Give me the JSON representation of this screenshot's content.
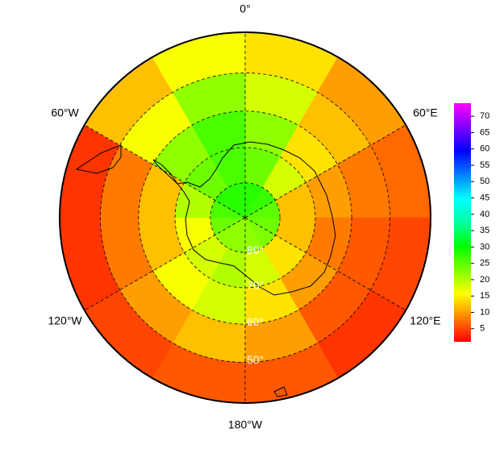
{
  "chart_data": {
    "type": "polar-heatmap",
    "lat_edges": [
      -90,
      -80,
      -70,
      -60,
      -50,
      -40
    ],
    "lon_edges": [
      0,
      30,
      60,
      90,
      120,
      150,
      180,
      210,
      240,
      270,
      300,
      330,
      360
    ],
    "values": [
      [
        28,
        27,
        25,
        24,
        23,
        22,
        22,
        22,
        24,
        26,
        28,
        28
      ],
      [
        24,
        18,
        12,
        12,
        14,
        18,
        20,
        18,
        16,
        20,
        24,
        26
      ],
      [
        22,
        14,
        10,
        8,
        10,
        14,
        18,
        16,
        12,
        12,
        22,
        26
      ],
      [
        18,
        12,
        8,
        6,
        6,
        10,
        12,
        10,
        8,
        8,
        16,
        22
      ],
      [
        14,
        10,
        7,
        5,
        4,
        6,
        6,
        5,
        4,
        4,
        12,
        16
      ]
    ],
    "lonticks": [
      {
        "value": 0,
        "label": "0°"
      },
      {
        "value": 60,
        "label": "60°E"
      },
      {
        "value": 120,
        "label": "120°E"
      },
      {
        "value": 180,
        "label": "180°W"
      },
      {
        "value": -120,
        "label": "120°W"
      },
      {
        "value": -60,
        "label": "60°W"
      }
    ],
    "latticks": [
      {
        "value": -80,
        "label": "80°"
      },
      {
        "value": -70,
        "label": "70°"
      },
      {
        "value": -60,
        "label": "60°"
      },
      {
        "value": -50,
        "label": "50°"
      }
    ],
    "colormap": [
      "#ff0000",
      "#ff8000",
      "#ffff00",
      "#80ff00",
      "#00ff00",
      "#00ffa0",
      "#00ffff",
      "#0080ff",
      "#0000ff",
      "#8000ff",
      "#ff00ff"
    ],
    "clim": [
      1,
      74
    ],
    "cticks": [
      5,
      10,
      15,
      20,
      25,
      30,
      35,
      40,
      45,
      50,
      55,
      60,
      65,
      70
    ]
  }
}
